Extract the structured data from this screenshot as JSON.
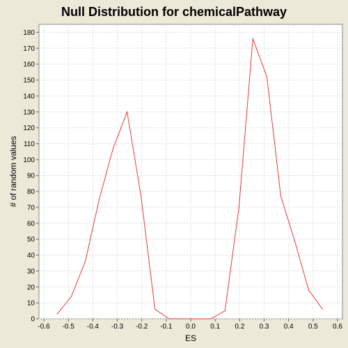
{
  "chart_data": {
    "type": "line",
    "title": "Null Distribution for chemicalPathway",
    "xlabel": "ES",
    "ylabel": "# of random values",
    "xlim": [
      -0.62,
      0.62
    ],
    "ylim": [
      0,
      185
    ],
    "x_ticks": [
      "-0.6",
      "-0.5",
      "-0.4",
      "-0.3",
      "-0.2",
      "-0.1",
      "0.0",
      "0.1",
      "0.2",
      "0.3",
      "0.4",
      "0.5",
      "0.6"
    ],
    "y_ticks": [
      "0",
      "10",
      "20",
      "30",
      "40",
      "50",
      "60",
      "70",
      "80",
      "90",
      "100",
      "110",
      "120",
      "130",
      "140",
      "150",
      "160",
      "170",
      "180"
    ],
    "grid": true,
    "legend": "none",
    "line_color": "#E8383D",
    "series": [
      {
        "x": [
          -0.545,
          -0.488,
          -0.431,
          -0.374,
          -0.317,
          -0.26,
          -0.203,
          -0.146,
          -0.089,
          -0.032,
          0.025,
          0.083,
          0.14,
          0.197,
          0.254,
          0.311,
          0.368,
          0.425,
          0.482,
          0.539
        ],
        "y": [
          3,
          14,
          36,
          75,
          107,
          130,
          77,
          6,
          0,
          0,
          0,
          0,
          5,
          70,
          176,
          152,
          77,
          49,
          18,
          6
        ]
      }
    ]
  }
}
